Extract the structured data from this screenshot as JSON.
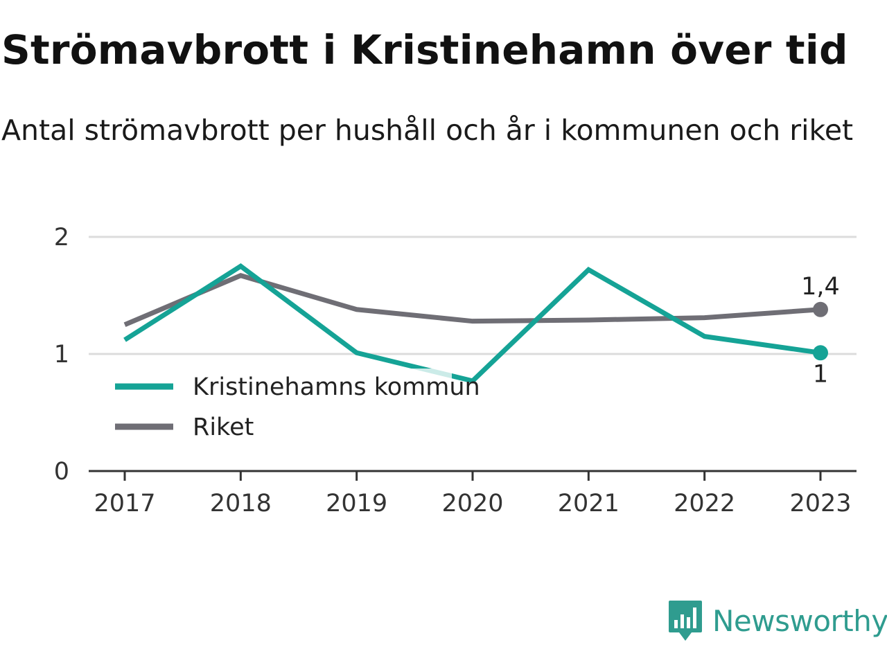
{
  "title": "Strömavbrott i Kristinehamn över tid",
  "subtitle": "Antal strömavbrott per hushåll och år i kommunen och riket",
  "brand": {
    "name": "Newsworthy",
    "icon": "newsworthy-logo-icon",
    "color": "#2f9c8f"
  },
  "chart_data": {
    "type": "line",
    "x": [
      "2017",
      "2018",
      "2019",
      "2020",
      "2021",
      "2022",
      "2023"
    ],
    "ylim": [
      0,
      2
    ],
    "yticks": [
      0,
      1,
      2
    ],
    "ytick_labels": [
      "0",
      "1",
      "2"
    ],
    "grid": true,
    "legend_position": "bottom-left",
    "series": [
      {
        "name": "Kristinehamns kommun",
        "color": "#15a396",
        "values": [
          1.12,
          1.75,
          1.01,
          0.77,
          1.72,
          1.15,
          1.01
        ],
        "end_label": "1"
      },
      {
        "name": "Riket",
        "color": "#6f6e75",
        "values": [
          1.25,
          1.67,
          1.38,
          1.28,
          1.29,
          1.31,
          1.38
        ],
        "end_label": "1,4"
      }
    ]
  }
}
